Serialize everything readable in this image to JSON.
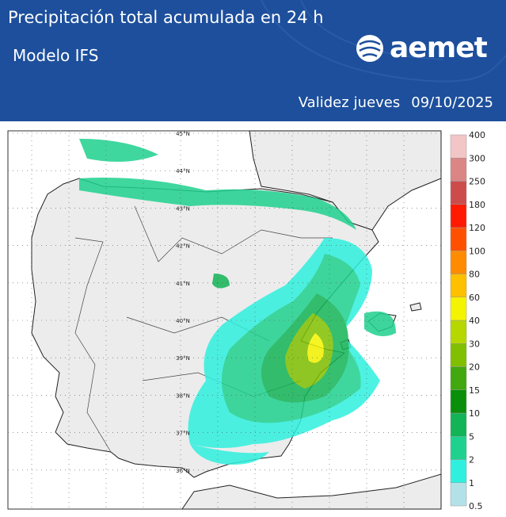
{
  "header": {
    "title": "Precipitación total acumulada en 24 h",
    "subtitle": "Modelo IFS",
    "logo": "aemet",
    "validity": {
      "label": "Validez",
      "day": "jueves",
      "date": "09/10/2025"
    }
  },
  "map": {
    "lat_labels": [
      "45°N",
      "44°N",
      "43°N",
      "42°N",
      "41°N",
      "40°N",
      "39°N",
      "38°N",
      "37°N",
      "36°N"
    ]
  },
  "legend": {
    "levels": [
      0.5,
      1,
      2,
      5,
      10,
      15,
      20,
      30,
      40,
      60,
      80,
      100,
      120,
      180,
      250,
      300,
      400
    ],
    "colors": [
      "#b3e1e8",
      "#2ff0df",
      "#1fd18f",
      "#12b456",
      "#0a8f0a",
      "#41a80f",
      "#81c000",
      "#b6d800",
      "#f4f400",
      "#ffc000",
      "#ff8c00",
      "#ff5000",
      "#ff1a00",
      "#cc4c4c",
      "#db8585",
      "#f2c6c6"
    ]
  }
}
